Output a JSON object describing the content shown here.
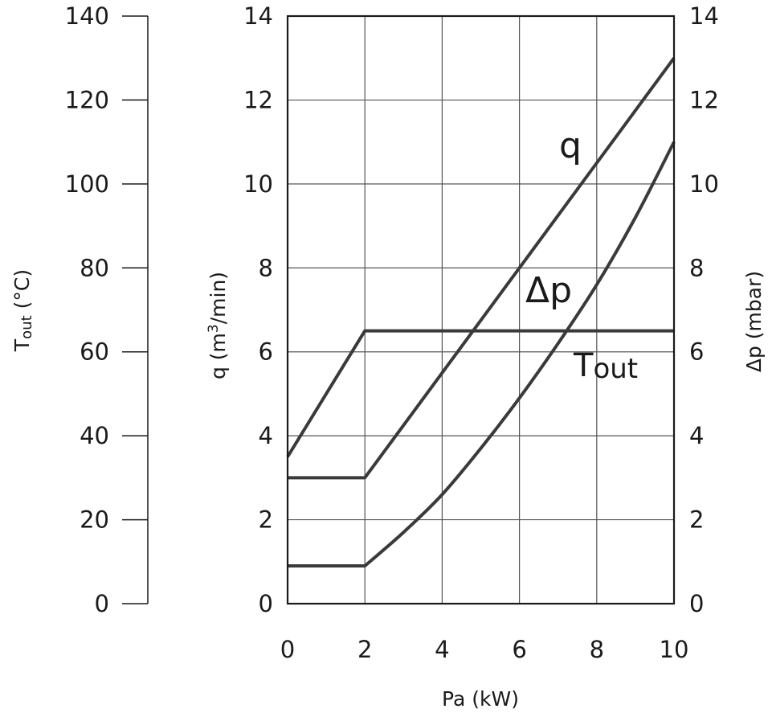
{
  "chart_data": {
    "type": "line",
    "xlabel": "Pa (kW)",
    "xlim": [
      0,
      10
    ],
    "x_ticks": [
      "0",
      "2",
      "4",
      "6",
      "8",
      "10"
    ],
    "y_left_outer": {
      "label_main": "T",
      "label_sub": "out",
      "label_unit": " (°C)",
      "ylim": [
        0,
        140
      ],
      "ticks": [
        "0",
        "20",
        "40",
        "60",
        "80",
        "100",
        "120",
        "140"
      ]
    },
    "y_left": {
      "label_main": "q (m",
      "label_sup": "3",
      "label_unit": "/min)",
      "ylim": [
        0,
        14
      ],
      "ticks": [
        "0",
        "2",
        "4",
        "6",
        "8",
        "10",
        "12",
        "14"
      ]
    },
    "y_right": {
      "label": "Δp (mbar)",
      "ylim": [
        0,
        14
      ],
      "ticks": [
        "0",
        "2",
        "4",
        "6",
        "8",
        "10",
        "12",
        "14"
      ]
    },
    "grid": true,
    "series": [
      {
        "name": "q",
        "axis": "y_left",
        "x": [
          0,
          2,
          4,
          6,
          8,
          10
        ],
        "y": [
          3.0,
          3.0,
          5.5,
          8.0,
          10.5,
          13.0
        ]
      },
      {
        "name": "Δp",
        "axis": "y_right",
        "x": [
          0,
          2,
          3,
          4,
          5,
          6,
          7,
          8,
          9,
          10
        ],
        "y": [
          0.9,
          0.9,
          1.7,
          2.6,
          3.7,
          4.9,
          6.2,
          7.6,
          9.2,
          11.0
        ]
      },
      {
        "name": "T",
        "name_sub": "out",
        "axis": "y_left_outer",
        "x": [
          0,
          2,
          10
        ],
        "y": [
          35,
          65,
          65
        ]
      }
    ]
  }
}
